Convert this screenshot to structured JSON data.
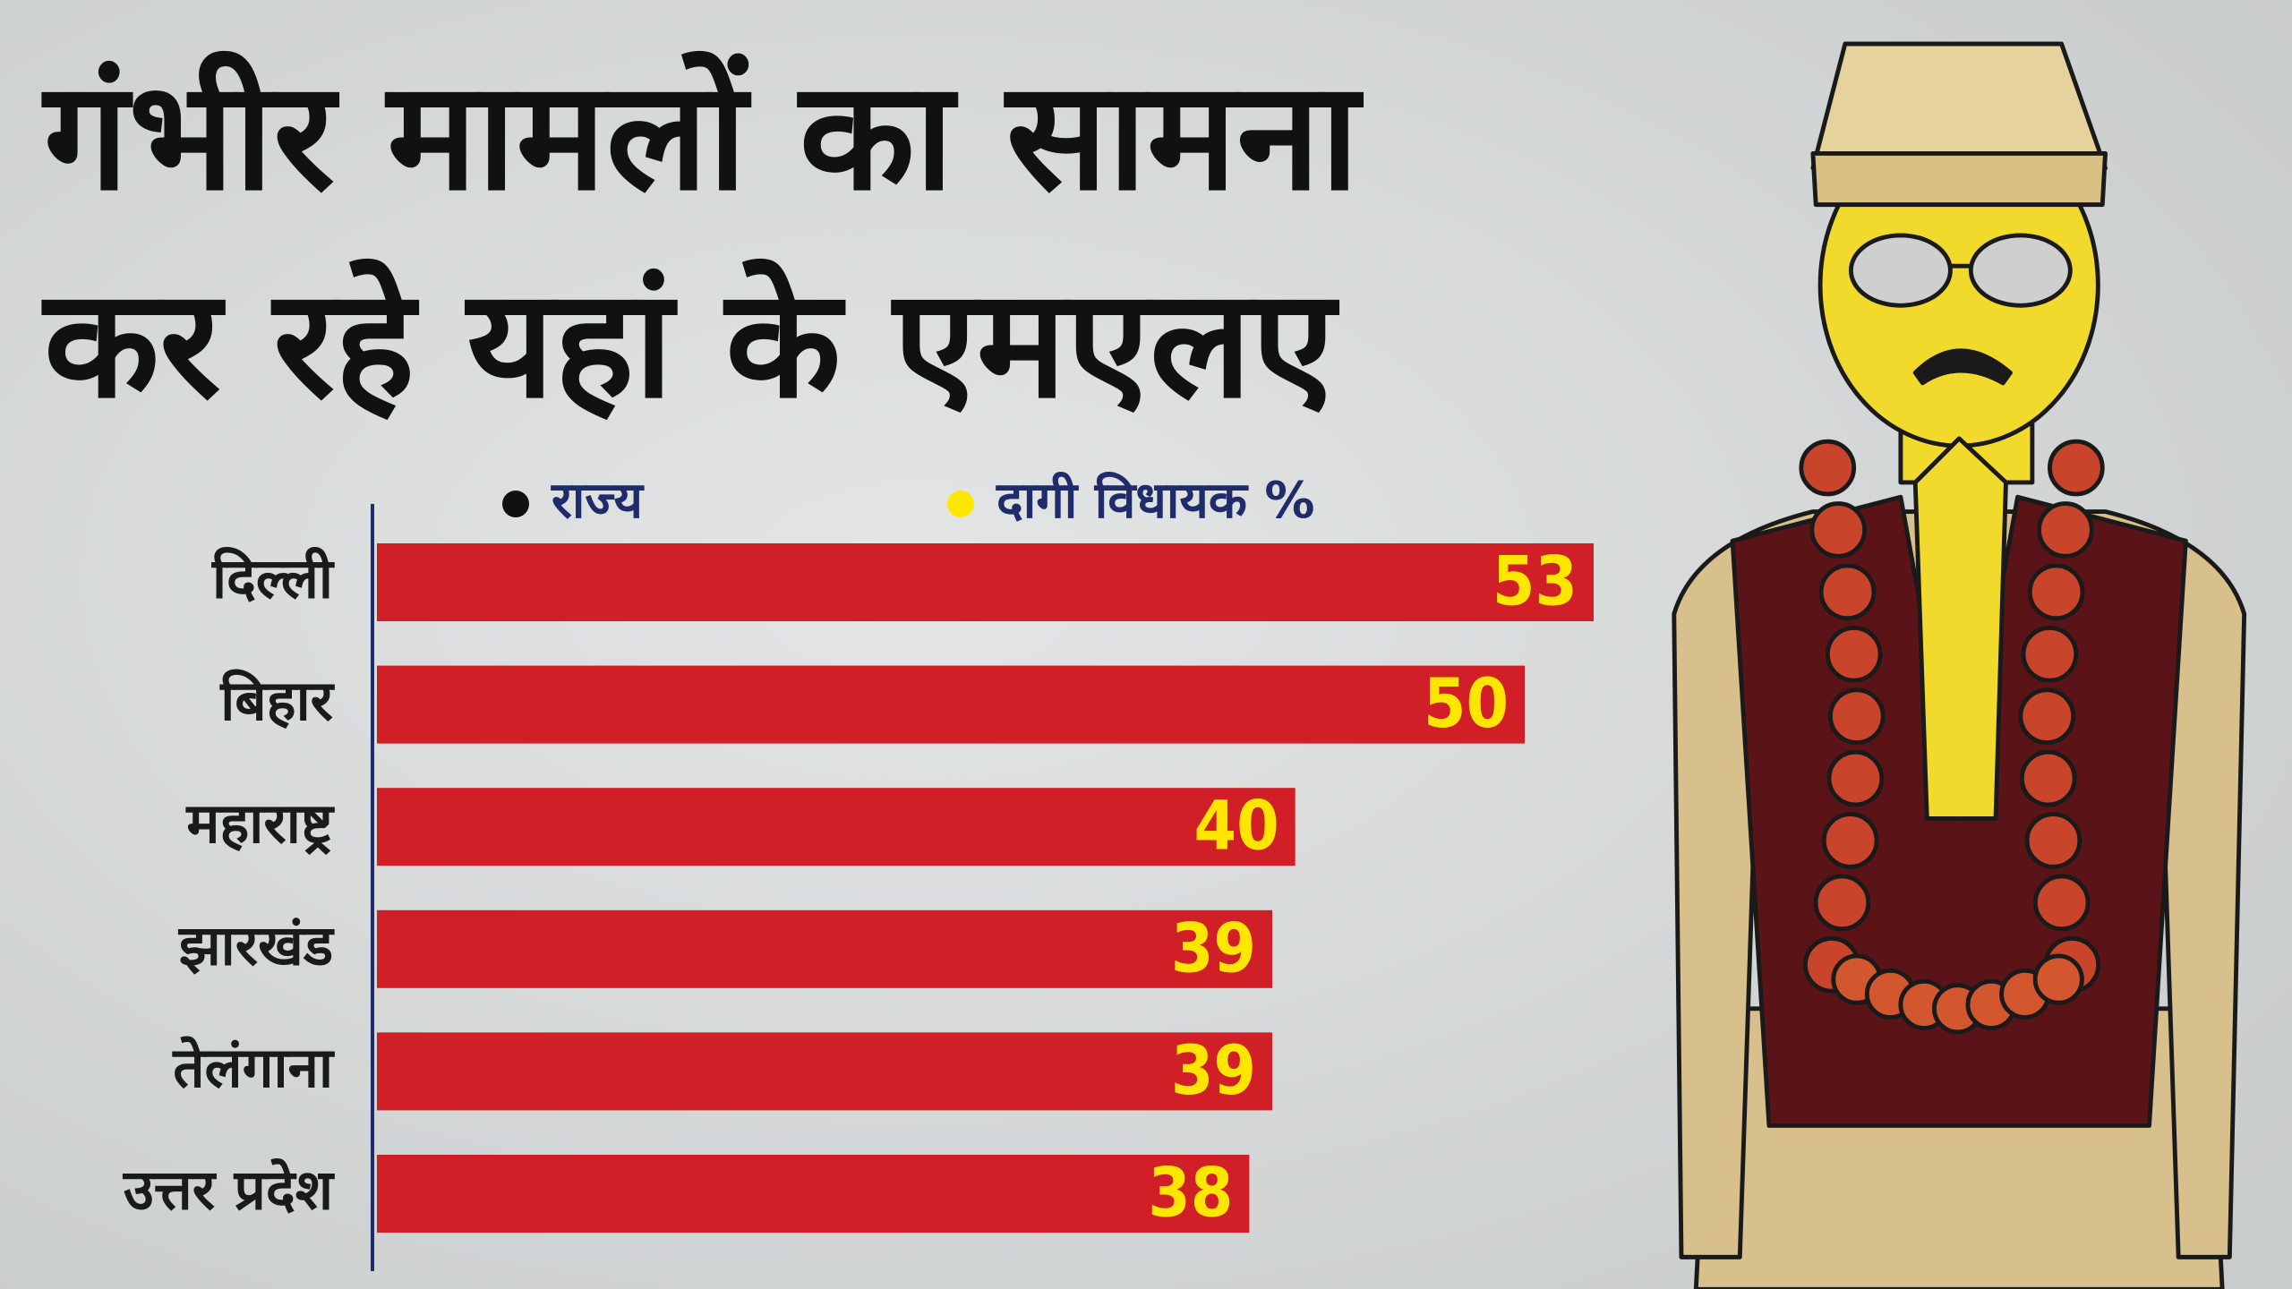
{
  "chart_data": {
    "type": "hbar",
    "title": [
      "गंभीर मामलों का सामना",
      "कर रहे यहां के एमएलए"
    ],
    "legend": [
      {
        "label": "राज्य",
        "color": "#111111"
      },
      {
        "label": "दागी विधायक %",
        "color": "#ffe600"
      }
    ],
    "categories": [
      "दिल्ली",
      "बिहार",
      "महाराष्ट्र",
      "झारखंड",
      "तेलंगाना",
      "उत्तर प्रदेश"
    ],
    "values": [
      53,
      50,
      40,
      39,
      39,
      38
    ],
    "bar_color": "#d11f27",
    "label_color": "#ffe600"
  }
}
